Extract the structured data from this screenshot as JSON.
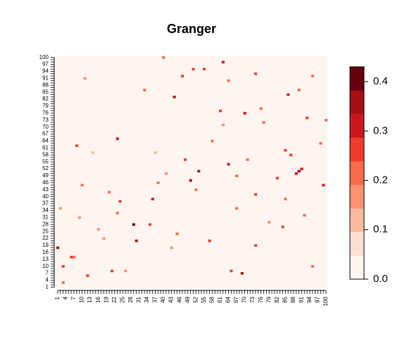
{
  "chart_data": {
    "type": "heatmap",
    "title": "Granger",
    "xlabel": "",
    "ylabel": "",
    "x_range": [
      1,
      100
    ],
    "y_range": [
      1,
      100
    ],
    "x_tick_labels": [
      "1",
      "4",
      "7",
      "10",
      "13",
      "16",
      "19",
      "22",
      "25",
      "28",
      "31",
      "34",
      "37",
      "40",
      "43",
      "46",
      "49",
      "52",
      "55",
      "58",
      "61",
      "64",
      "67",
      "70",
      "73",
      "76",
      "79",
      "82",
      "85",
      "88",
      "91",
      "94",
      "97",
      "100"
    ],
    "y_tick_labels": [
      "1",
      "4",
      "7",
      "10",
      "13",
      "16",
      "19",
      "22",
      "25",
      "28",
      "31",
      "34",
      "37",
      "40",
      "43",
      "46",
      "49",
      "52",
      "55",
      "58",
      "61",
      "64",
      "67",
      "70",
      "73",
      "76",
      "79",
      "82",
      "85",
      "88",
      "91",
      "94",
      "97",
      "100"
    ],
    "value_range": [
      0,
      0.43
    ],
    "legend_placement": "right",
    "legend_ticks": [
      "0.0",
      "0.1",
      "0.2",
      "0.3",
      "0.4"
    ],
    "legend_tick_values": [
      0,
      0.1,
      0.2,
      0.3,
      0.4
    ],
    "color_bins": [
      "#FFF5F0",
      "#FEE0D2",
      "#FCBBA1",
      "#FC9272",
      "#FB6A4A",
      "#EF3B2C",
      "#CB181D",
      "#A50F15",
      "#67000D"
    ],
    "background_value": 0.0,
    "cells": [
      [
        3,
        3,
        0.22
      ],
      [
        3,
        10,
        0.28
      ],
      [
        1,
        18,
        0.38
      ],
      [
        2,
        35,
        0.15
      ],
      [
        7,
        14,
        0.2
      ],
      [
        9,
        31,
        0.18
      ],
      [
        12,
        6,
        0.26
      ],
      [
        18,
        22,
        0.16
      ],
      [
        23,
        33,
        0.22
      ],
      [
        20,
        42,
        0.2
      ],
      [
        26,
        8,
        0.17
      ],
      [
        30,
        21,
        0.35
      ],
      [
        29,
        28,
        0.43
      ],
      [
        24,
        38,
        0.25
      ],
      [
        36,
        39,
        0.29
      ],
      [
        41,
        50,
        0.16
      ],
      [
        37,
        59,
        0.13
      ],
      [
        43,
        18,
        0.17
      ],
      [
        45,
        24,
        0.21
      ],
      [
        48,
        56,
        0.24
      ],
      [
        50,
        47,
        0.36
      ],
      [
        53,
        51,
        0.37
      ],
      [
        57,
        21,
        0.28
      ],
      [
        64,
        54,
        0.32
      ],
      [
        67,
        49,
        0.2
      ],
      [
        67,
        35,
        0.21
      ],
      [
        58,
        64,
        0.23
      ],
      [
        62,
        71,
        0.15
      ],
      [
        69,
        7,
        0.36
      ],
      [
        71,
        56,
        0.22
      ],
      [
        74,
        19,
        0.24
      ],
      [
        77,
        72,
        0.21
      ],
      [
        82,
        48,
        0.27
      ],
      [
        85,
        60,
        0.25
      ],
      [
        86,
        84,
        0.3
      ],
      [
        87,
        58,
        0.28
      ],
      [
        89,
        50,
        0.33
      ],
      [
        90,
        51,
        0.35
      ],
      [
        91,
        52,
        0.3
      ],
      [
        93,
        74,
        0.24
      ],
      [
        95,
        10,
        0.2
      ],
      [
        99,
        45,
        0.31
      ],
      [
        98,
        63,
        0.22
      ],
      [
        100,
        73,
        0.2
      ],
      [
        47,
        92,
        0.25
      ],
      [
        51,
        95,
        0.27
      ],
      [
        44,
        83,
        0.35
      ],
      [
        62,
        98,
        0.3
      ],
      [
        40,
        100,
        0.22
      ],
      [
        64,
        90,
        0.22
      ],
      [
        33,
        86,
        0.2
      ],
      [
        65,
        8,
        0.24
      ],
      [
        16,
        26,
        0.16
      ],
      [
        84,
        27,
        0.24
      ],
      [
        79,
        29,
        0.18
      ],
      [
        90,
        86,
        0.22
      ],
      [
        74,
        41,
        0.28
      ],
      [
        52,
        43,
        0.22
      ],
      [
        10,
        45,
        0.2
      ],
      [
        35,
        28,
        0.26
      ],
      [
        23,
        65,
        0.3
      ],
      [
        61,
        77,
        0.25
      ],
      [
        11,
        91,
        0.18
      ],
      [
        6,
        14,
        0.24
      ],
      [
        14,
        59,
        0.14
      ],
      [
        70,
        76,
        0.3
      ],
      [
        92,
        32,
        0.22
      ],
      [
        85,
        39,
        0.22
      ],
      [
        38,
        46,
        0.22
      ],
      [
        74,
        93,
        0.25
      ],
      [
        95,
        92,
        0.22
      ],
      [
        21,
        8,
        0.24
      ],
      [
        8,
        62,
        0.24
      ],
      [
        55,
        95,
        0.26
      ],
      [
        76,
        78,
        0.22
      ]
    ]
  }
}
